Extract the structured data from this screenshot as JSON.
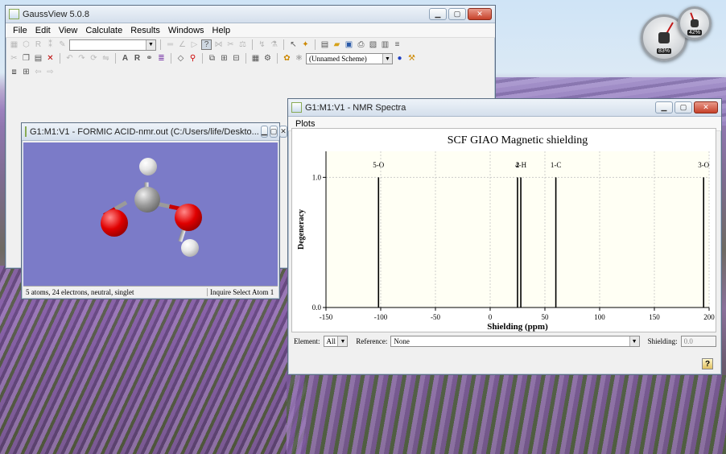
{
  "main_window": {
    "title": "GaussView 5.0.8",
    "menu": [
      "File",
      "Edit",
      "View",
      "Calculate",
      "Results",
      "Windows",
      "Help"
    ],
    "scheme_select": "(Unnamed Scheme)"
  },
  "molecule_window": {
    "title": "G1:M1:V1 - FORMIC ACID-nmr.out (C:/Users/life/Deskto...",
    "status_left": "5 atoms, 24 electrons, neutral, singlet",
    "status_right": "Inquire Select Atom 1",
    "view_bg": "#7b7bc8"
  },
  "nmr_window": {
    "title": "G1:M1:V1 - NMR Spectra",
    "menu": [
      "Plots"
    ],
    "element_label": "Element:",
    "element_value": "All",
    "reference_label": "Reference:",
    "reference_value": "None",
    "shielding_label": "Shielding:",
    "shielding_value": "0.0"
  },
  "gadgets": {
    "cpu_percent": "83%",
    "mem_percent": "42%"
  },
  "chart_data": {
    "type": "bar",
    "title": "SCF GIAO Magnetic shielding",
    "xlabel": "Shielding (ppm)",
    "ylabel": "Degeneracy",
    "xlim": [
      -150,
      200
    ],
    "ylim": [
      0,
      1.2
    ],
    "xticks": [
      -150,
      -100,
      -50,
      0,
      50,
      100,
      150,
      200
    ],
    "yticks": [
      0.0,
      1.0
    ],
    "grid": true,
    "peaks": [
      {
        "label": "5-O",
        "x": -102,
        "value": 1.0
      },
      {
        "label": "2",
        "x": 25,
        "value": 1.0
      },
      {
        "label": "4-H",
        "x": 28,
        "value": 1.0
      },
      {
        "label": "1-C",
        "x": 60,
        "value": 1.0
      },
      {
        "label": "3-O",
        "x": 195,
        "value": 1.0
      }
    ]
  }
}
